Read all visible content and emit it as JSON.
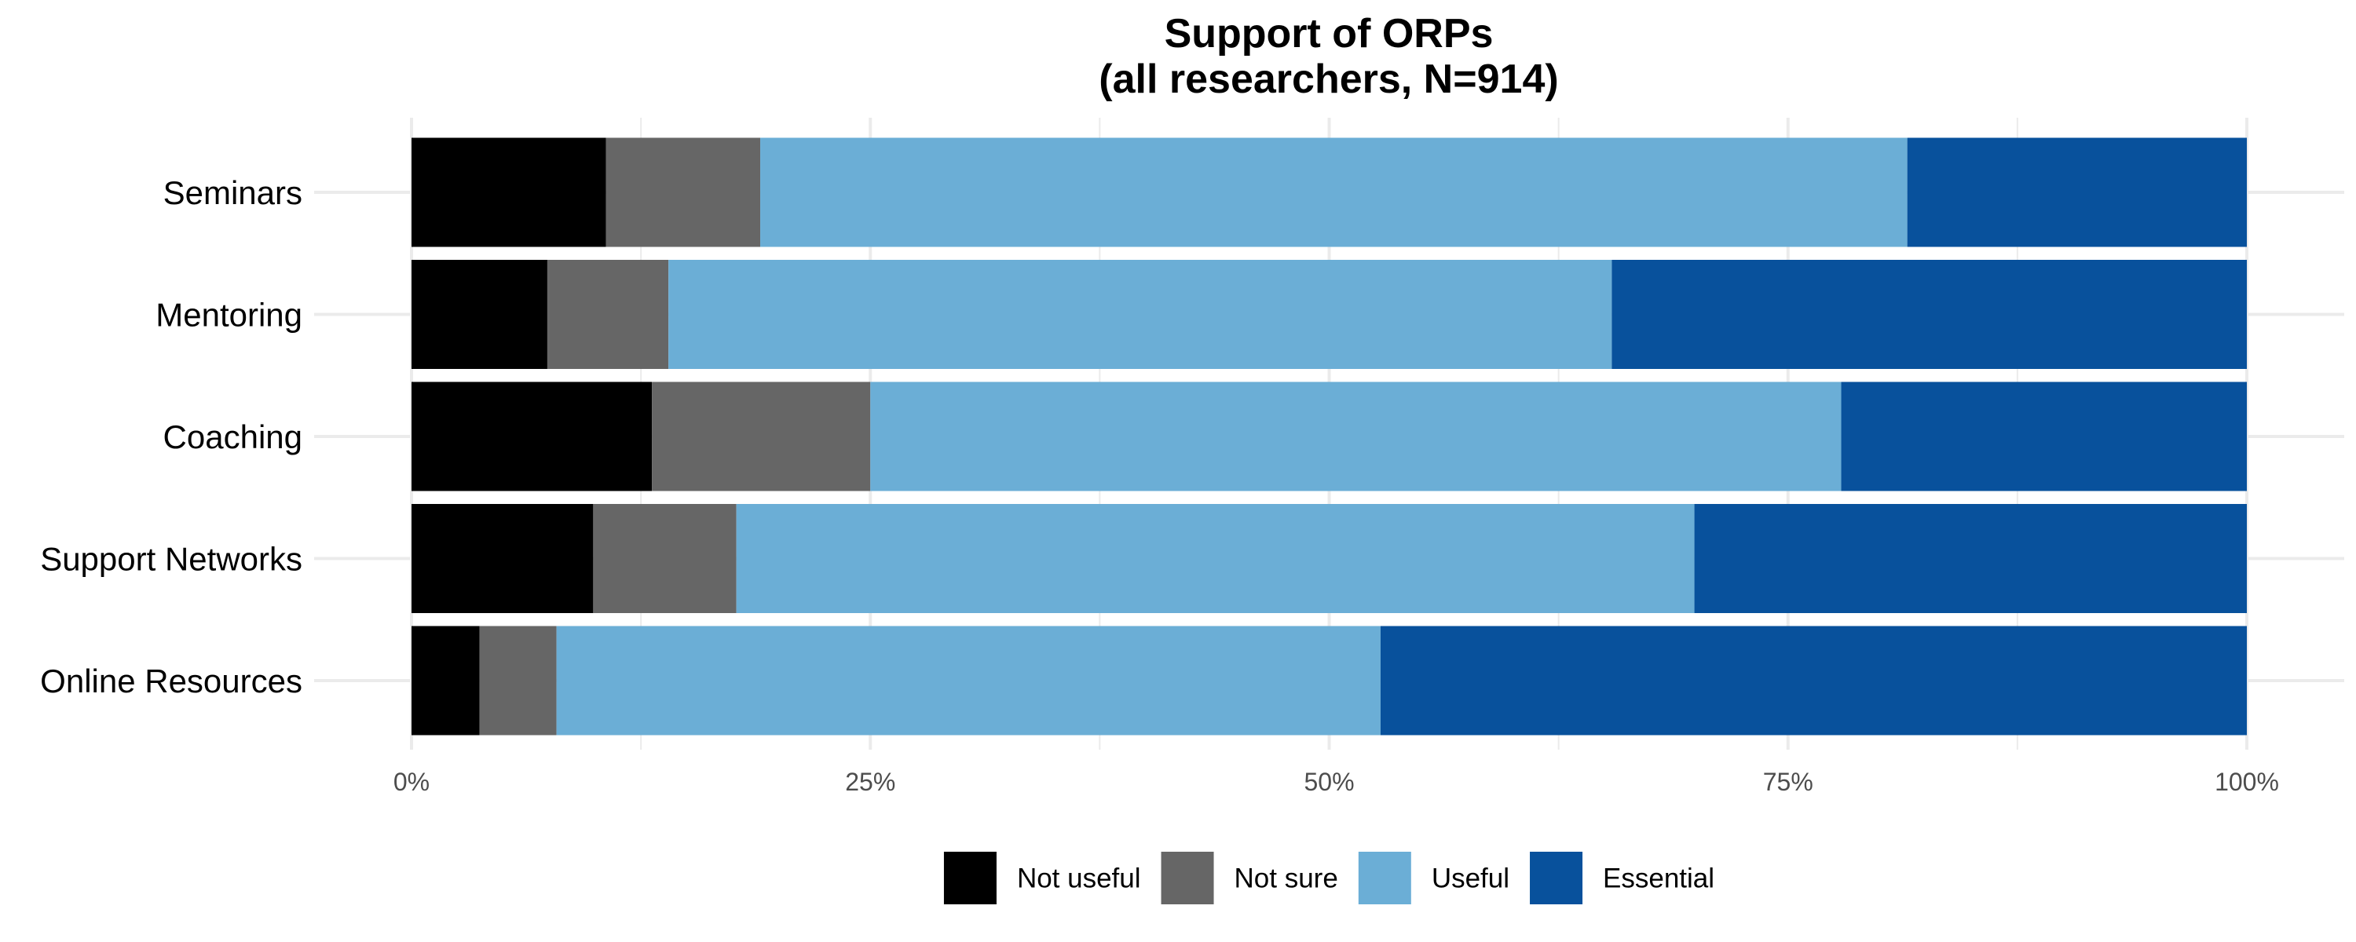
{
  "chart_data": {
    "type": "bar",
    "orientation": "horizontal",
    "stacked": true,
    "normalized": true,
    "title": "Support of ORPs",
    "subtitle": "(all researchers, N=914)",
    "xlabel": "",
    "ylabel": "",
    "xlim": [
      0,
      100
    ],
    "x_ticks": [
      0,
      25,
      50,
      75,
      100
    ],
    "x_tick_labels": [
      "0%",
      "25%",
      "50%",
      "75%",
      "100%"
    ],
    "grid": true,
    "legend_position": "bottom",
    "categories": [
      "Seminars",
      "Mentoring",
      "Coaching",
      "Support Networks",
      "Online Resources"
    ],
    "series": [
      {
        "name": "Not useful",
        "color": "#000000",
        "values": [
          10.6,
          7.4,
          13.1,
          9.9,
          3.7
        ]
      },
      {
        "name": "Not sure",
        "color": "#666666",
        "values": [
          8.4,
          6.6,
          11.9,
          7.8,
          4.2
        ]
      },
      {
        "name": "Useful",
        "color": "#6baed6",
        "values": [
          62.5,
          51.4,
          52.9,
          52.2,
          44.9
        ]
      },
      {
        "name": "Essential",
        "color": "#08519c",
        "values": [
          18.5,
          34.6,
          22.1,
          30.1,
          47.2
        ]
      }
    ]
  }
}
